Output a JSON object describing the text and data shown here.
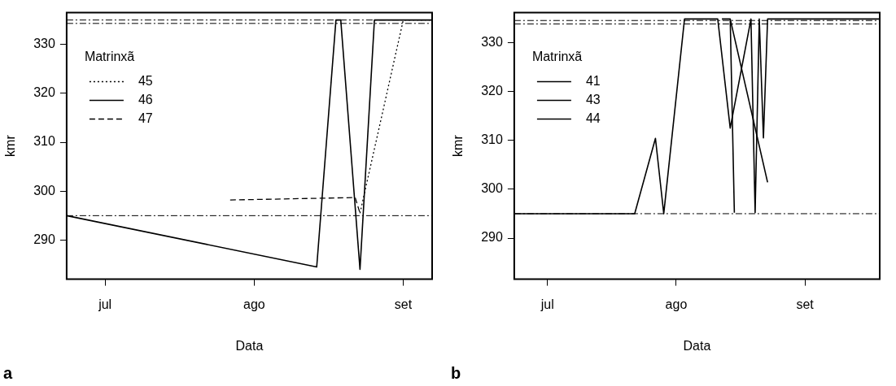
{
  "chart_data": [
    {
      "type": "line",
      "xlabel": "Data",
      "ylabel": "kmr",
      "legend_title": "Matrinxã",
      "legend": "top left",
      "grid": false,
      "marker": "none",
      "annotations": [
        "a"
      ],
      "categories": [
        null,
        null,
        null,
        null,
        null,
        null,
        null,
        null,
        "jul",
        null,
        null,
        null,
        null,
        null,
        null,
        null,
        null,
        null,
        null,
        null,
        null,
        null,
        null,
        null,
        null,
        null,
        null,
        null,
        null,
        null,
        null,
        null,
        null,
        null,
        null,
        null,
        null,
        null,
        null,
        "ago",
        null,
        null,
        null,
        null,
        null,
        null,
        null,
        null,
        null,
        null,
        null,
        null,
        null,
        null,
        null,
        null,
        null,
        null,
        null,
        null,
        null,
        null,
        null,
        null,
        null,
        null,
        null,
        null,
        null,
        null,
        "set",
        null,
        null,
        null,
        null,
        null,
        null
      ],
      "ylim": [
        282,
        336.5
      ],
      "yticks": [
        290,
        300,
        310,
        320,
        330
      ],
      "ref_lines": [
        {
          "axis": "y",
          "value": 295,
          "color": "#000000",
          "line_style": "dashed"
        },
        {
          "axis": "y",
          "value": 335,
          "color": "#000000",
          "line_style": "dashed"
        },
        {
          "axis": "y",
          "value": 334.3,
          "color": "#000000",
          "line_style": "dashed"
        }
      ],
      "series": [
        {
          "name": "45",
          "color": "#000000",
          "line_style": "dotted",
          "values": [
            null,
            null,
            null,
            null,
            null,
            null,
            null,
            null,
            null,
            null,
            null,
            null,
            null,
            null,
            null,
            null,
            null,
            null,
            null,
            null,
            null,
            null,
            null,
            null,
            null,
            null,
            null,
            null,
            null,
            null,
            null,
            null,
            null,
            null,
            null,
            null,
            null,
            null,
            null,
            null,
            null,
            null,
            null,
            null,
            null,
            null,
            null,
            null,
            null,
            null,
            null,
            null,
            null,
            null,
            null,
            null,
            null,
            null,
            null,
            null,
            null,
            295.5,
            null,
            null,
            null,
            null,
            null,
            null,
            null,
            null,
            335,
            null,
            null,
            null,
            null,
            null,
            335
          ]
        },
        {
          "name": "46",
          "color": "#000000",
          "line_style": "solid",
          "values": [
            295,
            null,
            null,
            null,
            null,
            null,
            null,
            null,
            null,
            null,
            null,
            null,
            null,
            null,
            null,
            null,
            null,
            null,
            null,
            null,
            null,
            null,
            null,
            null,
            null,
            null,
            null,
            null,
            null,
            null,
            null,
            null,
            null,
            null,
            null,
            null,
            null,
            null,
            null,
            null,
            null,
            null,
            null,
            null,
            null,
            null,
            null,
            null,
            null,
            null,
            null,
            null,
            284.5,
            null,
            null,
            null,
            335,
            335,
            null,
            null,
            null,
            284,
            null,
            null,
            335,
            null,
            null,
            null,
            null,
            null,
            null,
            null,
            null,
            null,
            null,
            null,
            335
          ]
        },
        {
          "name": "47",
          "color": "#000000",
          "line_style": "dashed",
          "values": [
            null,
            null,
            null,
            null,
            null,
            null,
            null,
            null,
            null,
            null,
            null,
            null,
            null,
            null,
            null,
            null,
            null,
            null,
            null,
            null,
            null,
            null,
            null,
            null,
            null,
            null,
            null,
            null,
            null,
            null,
            null,
            null,
            null,
            null,
            298.2,
            null,
            null,
            null,
            null,
            null,
            null,
            null,
            null,
            null,
            null,
            null,
            null,
            null,
            null,
            null,
            null,
            null,
            null,
            null,
            null,
            null,
            null,
            null,
            null,
            null,
            298.7,
            295.5,
            null,
            null,
            null,
            null,
            null,
            null,
            null,
            null,
            null,
            null,
            null,
            null,
            null,
            null,
            null
          ]
        }
      ]
    },
    {
      "type": "line",
      "xlabel": "Data",
      "ylabel": "kmr",
      "legend_title": "Matrinxã",
      "legend": "top left",
      "grid": false,
      "marker": "none",
      "annotations": [
        "b"
      ],
      "categories": [
        null,
        null,
        null,
        null,
        null,
        null,
        null,
        null,
        "jul",
        null,
        null,
        null,
        null,
        null,
        null,
        null,
        null,
        null,
        null,
        null,
        null,
        null,
        null,
        null,
        null,
        null,
        null,
        null,
        null,
        null,
        null,
        null,
        null,
        null,
        null,
        null,
        null,
        null,
        null,
        "ago",
        null,
        null,
        null,
        null,
        null,
        null,
        null,
        null,
        null,
        null,
        null,
        null,
        null,
        null,
        null,
        null,
        null,
        null,
        null,
        null,
        null,
        null,
        null,
        null,
        null,
        null,
        null,
        null,
        null,
        null,
        "set",
        null,
        null,
        null,
        null,
        null,
        null,
        null,
        null,
        null,
        null,
        null,
        null,
        null,
        null,
        null,
        null,
        null,
        null
      ],
      "ylim": [
        281.6,
        336.1
      ],
      "yticks": [
        290,
        300,
        310,
        320,
        330
      ],
      "ref_lines": [
        {
          "axis": "y",
          "value": 295,
          "color": "#000000",
          "line_style": "dashed"
        },
        {
          "axis": "y",
          "value": 334.5,
          "color": "#000000",
          "line_style": "dashed"
        },
        {
          "axis": "y",
          "value": 333.8,
          "color": "#000000",
          "line_style": "dashed"
        }
      ],
      "series": [
        {
          "name": "41",
          "color": "#000000",
          "line_style": "solid",
          "values": [
            295,
            null,
            null,
            null,
            null,
            null,
            null,
            null,
            null,
            null,
            null,
            null,
            null,
            null,
            null,
            null,
            null,
            null,
            null,
            null,
            null,
            null,
            null,
            null,
            null,
            null,
            null,
            null,
            null,
            295,
            null,
            null,
            null,
            null,
            310.4,
            null,
            295,
            null,
            null,
            null,
            null,
            334.8,
            null,
            null,
            null,
            null,
            null,
            null,
            null,
            334.8,
            null,
            null,
            312.5,
            null,
            null,
            null,
            null,
            334.8,
            295.2,
            334.8,
            310.5,
            334.8,
            null,
            null,
            null,
            null,
            null,
            null,
            null,
            null,
            null,
            null,
            null,
            null,
            null,
            null,
            null,
            null,
            null,
            null,
            null,
            null,
            null,
            null,
            null,
            null,
            null,
            null,
            334.8
          ]
        },
        {
          "name": "43",
          "color": "#000000",
          "line_style": "solid",
          "values": [
            null,
            null,
            null,
            null,
            null,
            null,
            null,
            null,
            null,
            null,
            null,
            null,
            null,
            null,
            null,
            null,
            null,
            null,
            null,
            null,
            null,
            null,
            null,
            null,
            null,
            null,
            null,
            null,
            null,
            null,
            null,
            null,
            null,
            null,
            null,
            null,
            null,
            null,
            null,
            null,
            null,
            null,
            null,
            null,
            null,
            null,
            null,
            null,
            null,
            null,
            334.8,
            null,
            334.8,
            295.2,
            null,
            null,
            null,
            null,
            null,
            null,
            null,
            null,
            null,
            null,
            null,
            null,
            null,
            null,
            null,
            null,
            null,
            null,
            null,
            null,
            null,
            null,
            null,
            null,
            null,
            null,
            null,
            null,
            null,
            null,
            null,
            null,
            null,
            null,
            null
          ]
        },
        {
          "name": "44",
          "color": "#000000",
          "line_style": "solid",
          "values": [
            null,
            null,
            null,
            null,
            null,
            null,
            null,
            null,
            null,
            null,
            null,
            null,
            null,
            null,
            null,
            null,
            null,
            null,
            null,
            null,
            null,
            null,
            null,
            null,
            null,
            null,
            null,
            null,
            null,
            null,
            null,
            null,
            null,
            null,
            null,
            null,
            null,
            null,
            null,
            null,
            null,
            null,
            null,
            null,
            null,
            null,
            null,
            null,
            null,
            null,
            null,
            null,
            334.8,
            null,
            null,
            null,
            null,
            null,
            null,
            null,
            null,
            301.4,
            null,
            null,
            null,
            null,
            null,
            null,
            null,
            null,
            null,
            null,
            null,
            null,
            null,
            null,
            null,
            null,
            null,
            null,
            null,
            null,
            null,
            null,
            null,
            null,
            null,
            null,
            null
          ]
        }
      ]
    }
  ]
}
